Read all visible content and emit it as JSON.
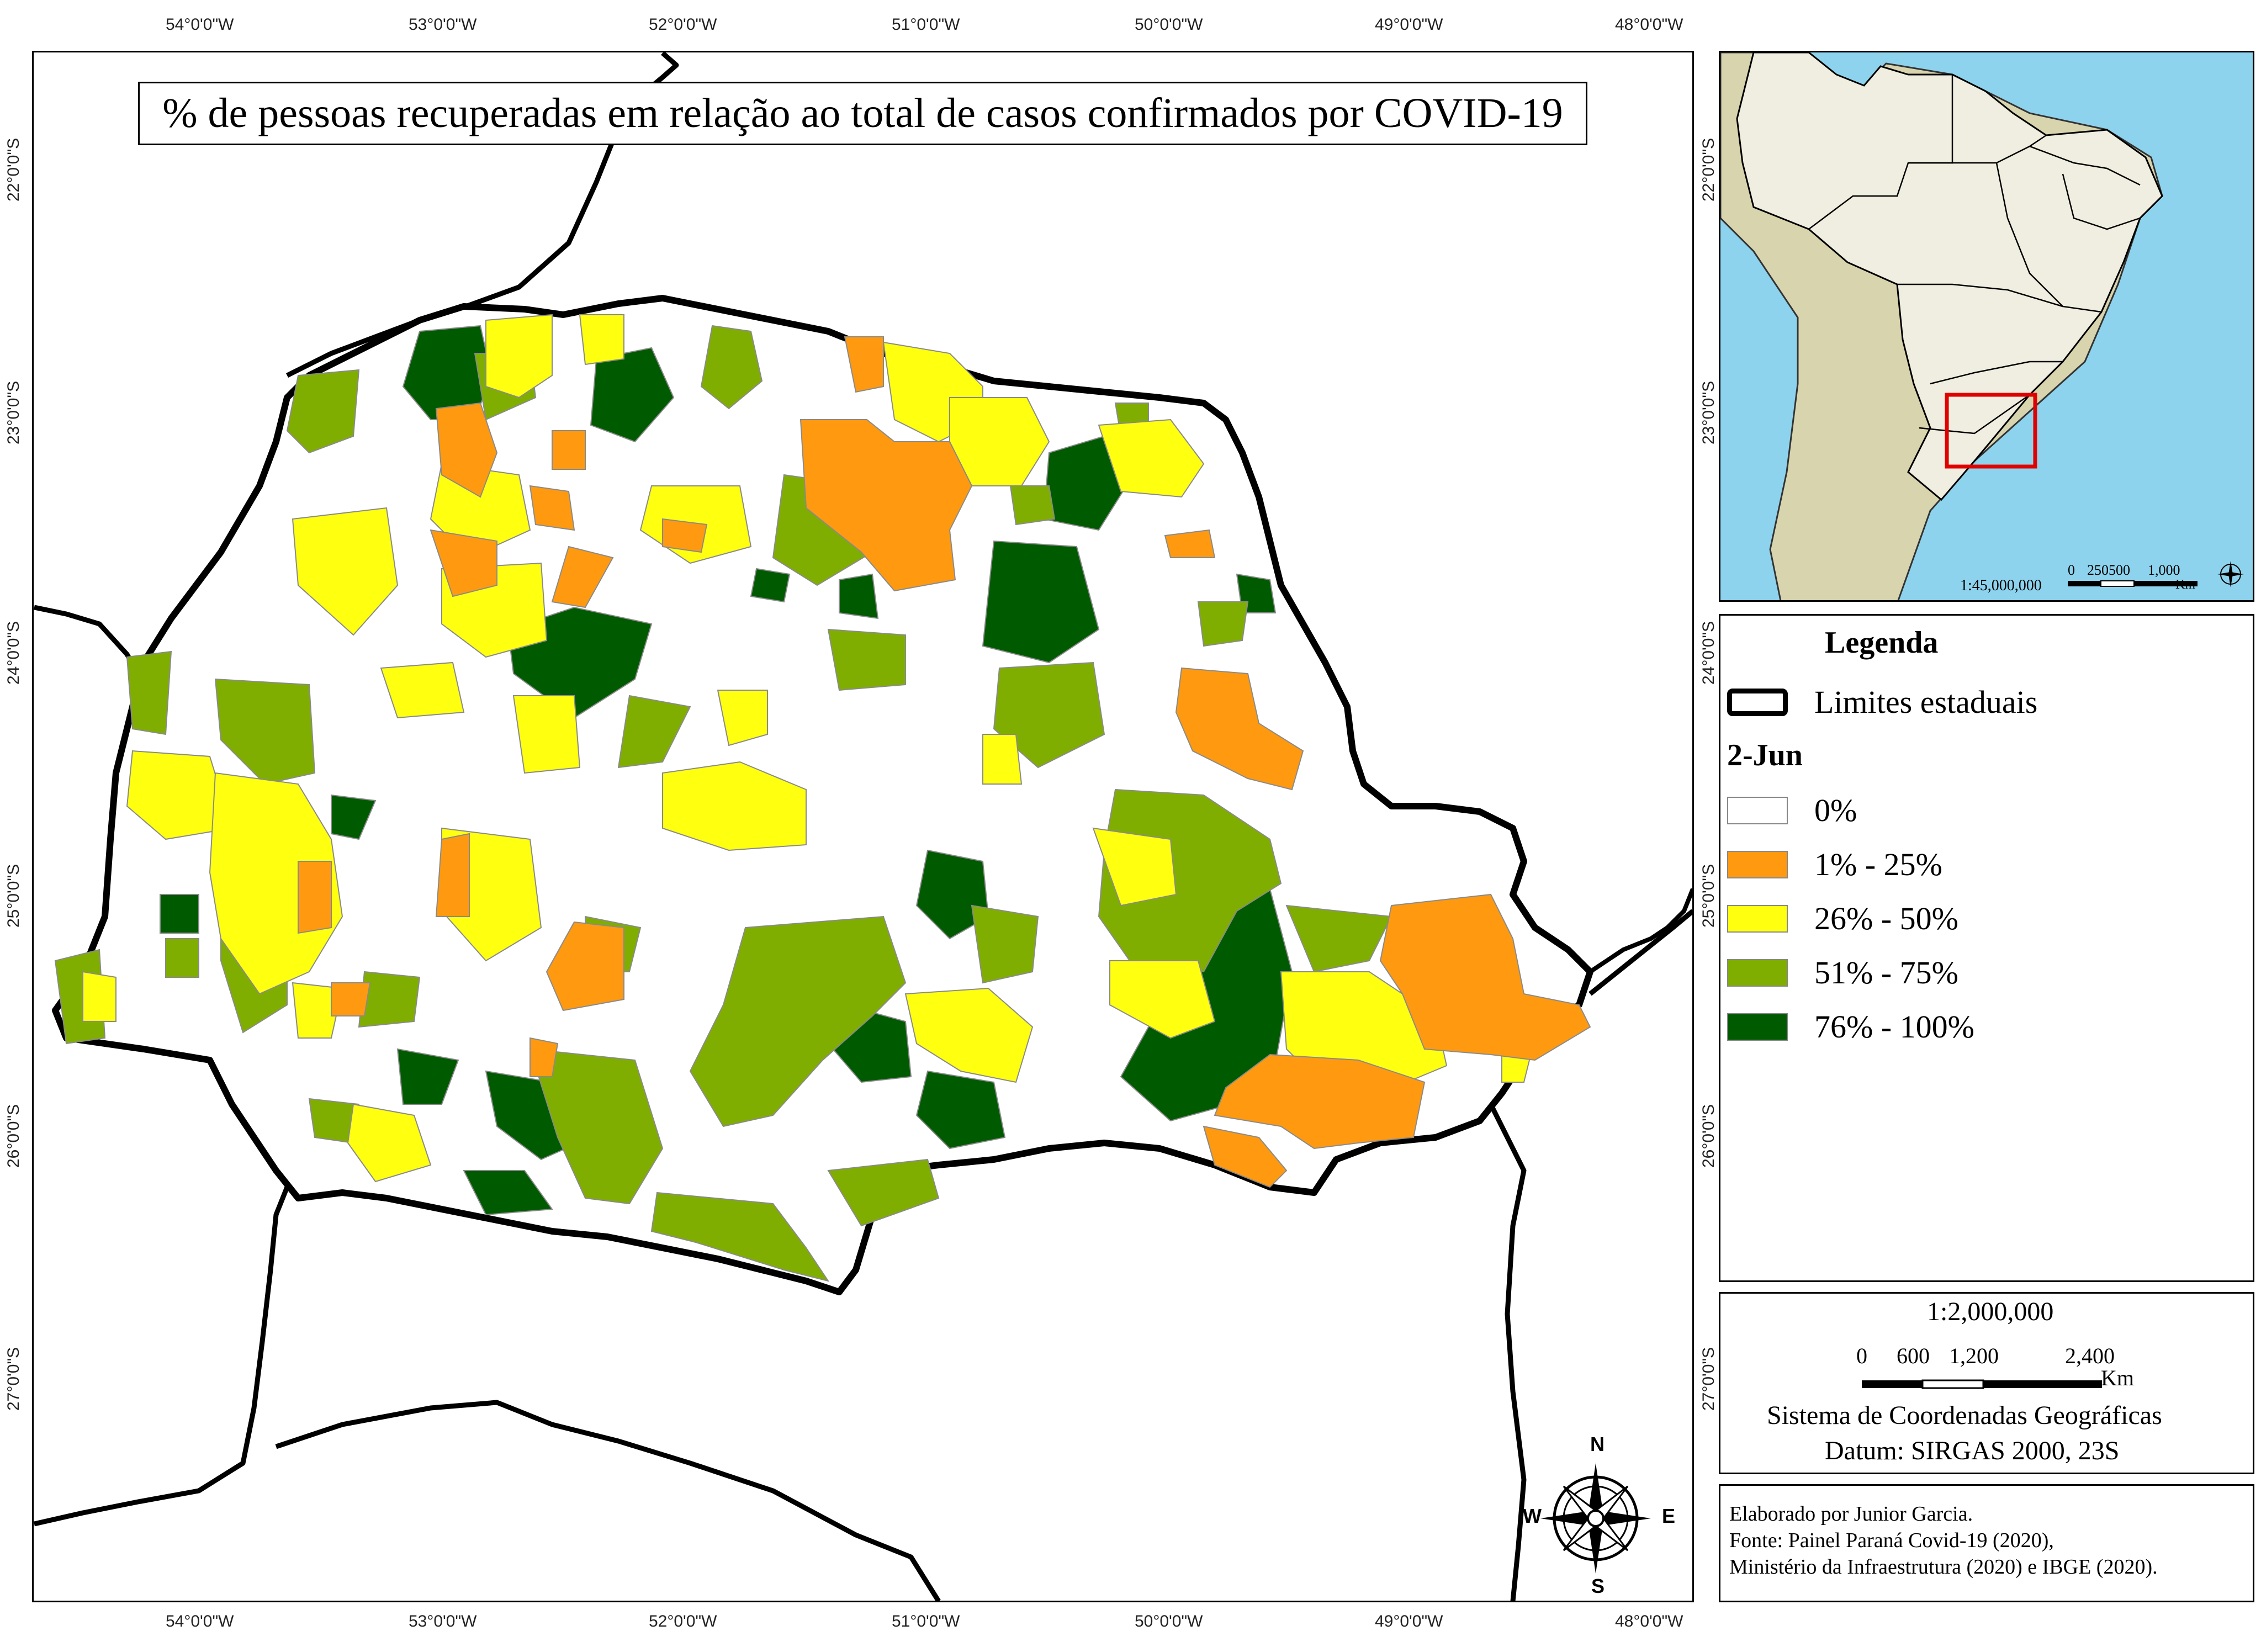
{
  "title": "% de pessoas recuperadas em relação ao total de casos confirmados por COVID-19",
  "axes": {
    "lon_labels": [
      "54°0'0\"W",
      "53°0'0\"W",
      "52°0'0\"W",
      "51°0'0\"W",
      "50°0'0\"W",
      "49°0'0\"W",
      "48°0'0\"W"
    ],
    "lat_labels": [
      "22°0'0\"S",
      "23°0'0\"S",
      "24°0'0\"S",
      "25°0'0\"S",
      "26°0'0\"S",
      "27°0'0\"S"
    ]
  },
  "legend": {
    "heading": "Legenda",
    "boundary_label": "Limites estaduais",
    "date": "2-Jun",
    "classes": [
      {
        "label": "0%",
        "color": "#ffffff"
      },
      {
        "label": "1% - 25%",
        "color": "#ff9a10"
      },
      {
        "label": "26% - 50%",
        "color": "#ffff10"
      },
      {
        "label": "51% - 75%",
        "color": "#7fae00"
      },
      {
        "label": "76% - 100%",
        "color": "#005a00"
      }
    ]
  },
  "inset": {
    "scale": "1:45,000,000",
    "bar_ticks": [
      "0",
      "250500",
      "1,000"
    ],
    "bar_unit": "Km",
    "colors": {
      "ocean": "#8ed3ee",
      "brazil": "#f0eee0",
      "south_america": "#d8d4ae",
      "highlight": "#e00000"
    }
  },
  "scale_box": {
    "ratio": "1:2,000,000",
    "ticks": [
      "0",
      "600",
      "1,200",
      "2,400"
    ],
    "unit": "Km",
    "system": "Sistema de Coordenadas Geográficas",
    "datum": "Datum: SIRGAS 2000, 23S"
  },
  "north_arrow": {
    "n": "N",
    "s": "S",
    "e": "E",
    "w": "W"
  },
  "credits": [
    "Elaborado por Junior Garcia.",
    "Fonte: Painel Paraná Covid-19 (2020),",
    "Ministério da Infraestrutura (2020) e IBGE (2020)."
  ]
}
